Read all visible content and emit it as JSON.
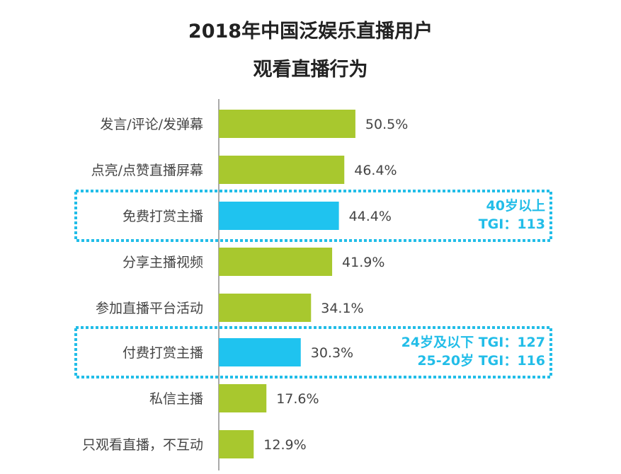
{
  "title_line1": "2018年中国泛娱乐直播用户",
  "title_line2": "观看直播行为",
  "colors": {
    "default_bar": "#a8c82e",
    "highlight_bar": "#1fc3ef",
    "annotation": "#22bde8"
  },
  "chart_data": {
    "type": "bar",
    "orientation": "horizontal",
    "title": "2018年中国泛娱乐直播用户 观看直播行为",
    "categories": [
      "发言/评论/发弹幕",
      "点亮/点赞直播屏幕",
      "免费打赏主播",
      "分享主播视频",
      "参加直播平台活动",
      "付费打赏主播",
      "私信主播",
      "只观看直播，不互动"
    ],
    "values": [
      50.5,
      46.4,
      44.4,
      41.9,
      34.1,
      30.3,
      17.6,
      12.9
    ],
    "value_labels": [
      "50.5%",
      "46.4%",
      "44.4%",
      "41.9%",
      "34.1%",
      "30.3%",
      "17.6%",
      "12.9%"
    ],
    "highlighted": [
      false,
      false,
      true,
      false,
      false,
      true,
      false,
      false
    ],
    "unit": "%",
    "grid": false,
    "annotations": [
      {
        "category": "免费打赏主播",
        "lines": [
          "40岁以上",
          "TGI：113"
        ]
      },
      {
        "category": "付费打赏主播",
        "lines": [
          "24岁及以下 TGI：127",
          "25-20岁 TGI：116"
        ]
      }
    ]
  }
}
